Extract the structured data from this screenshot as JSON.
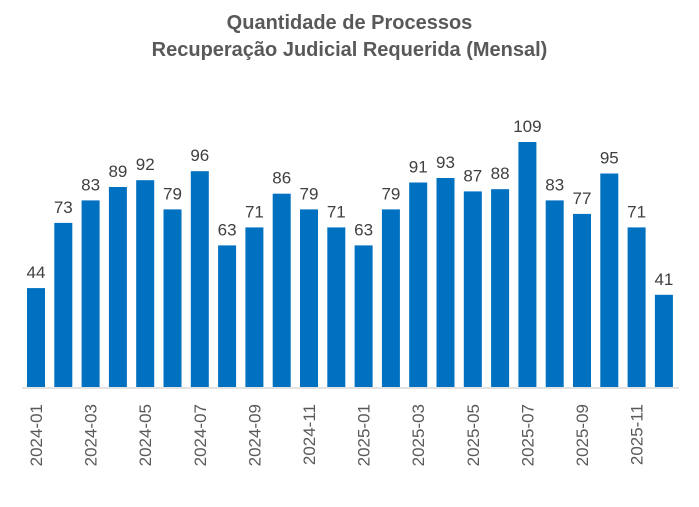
{
  "chart_data": {
    "type": "bar",
    "title": "Quantidade de Processos",
    "subtitle": "Recuperação Judicial Requerida (Mensal)",
    "xlabel": "",
    "ylabel": "",
    "ylim": [
      0,
      109
    ],
    "grid": false,
    "legend": "none",
    "bar_color": "#0070C0",
    "categories": [
      "2024-01",
      "2024-02",
      "2024-03",
      "2024-04",
      "2024-05",
      "2024-06",
      "2024-07",
      "2024-08",
      "2024-09",
      "2024-10",
      "2024-11",
      "2024-12",
      "2025-01",
      "2025-02",
      "2025-03",
      "2025-04",
      "2025-05",
      "2025-06",
      "2025-07",
      "2025-08",
      "2025-09",
      "2025-10",
      "2025-11",
      "2025-12"
    ],
    "tick_labels": [
      "2024-01",
      "2024-03",
      "2024-05",
      "2024-07",
      "2024-09",
      "2024-11",
      "2025-01",
      "2025-03",
      "2025-05",
      "2025-07",
      "2025-09",
      "2025-11"
    ],
    "values": [
      44,
      73,
      83,
      89,
      92,
      79,
      96,
      63,
      71,
      86,
      79,
      71,
      63,
      79,
      91,
      93,
      87,
      88,
      109,
      83,
      77,
      95,
      71,
      41
    ]
  }
}
